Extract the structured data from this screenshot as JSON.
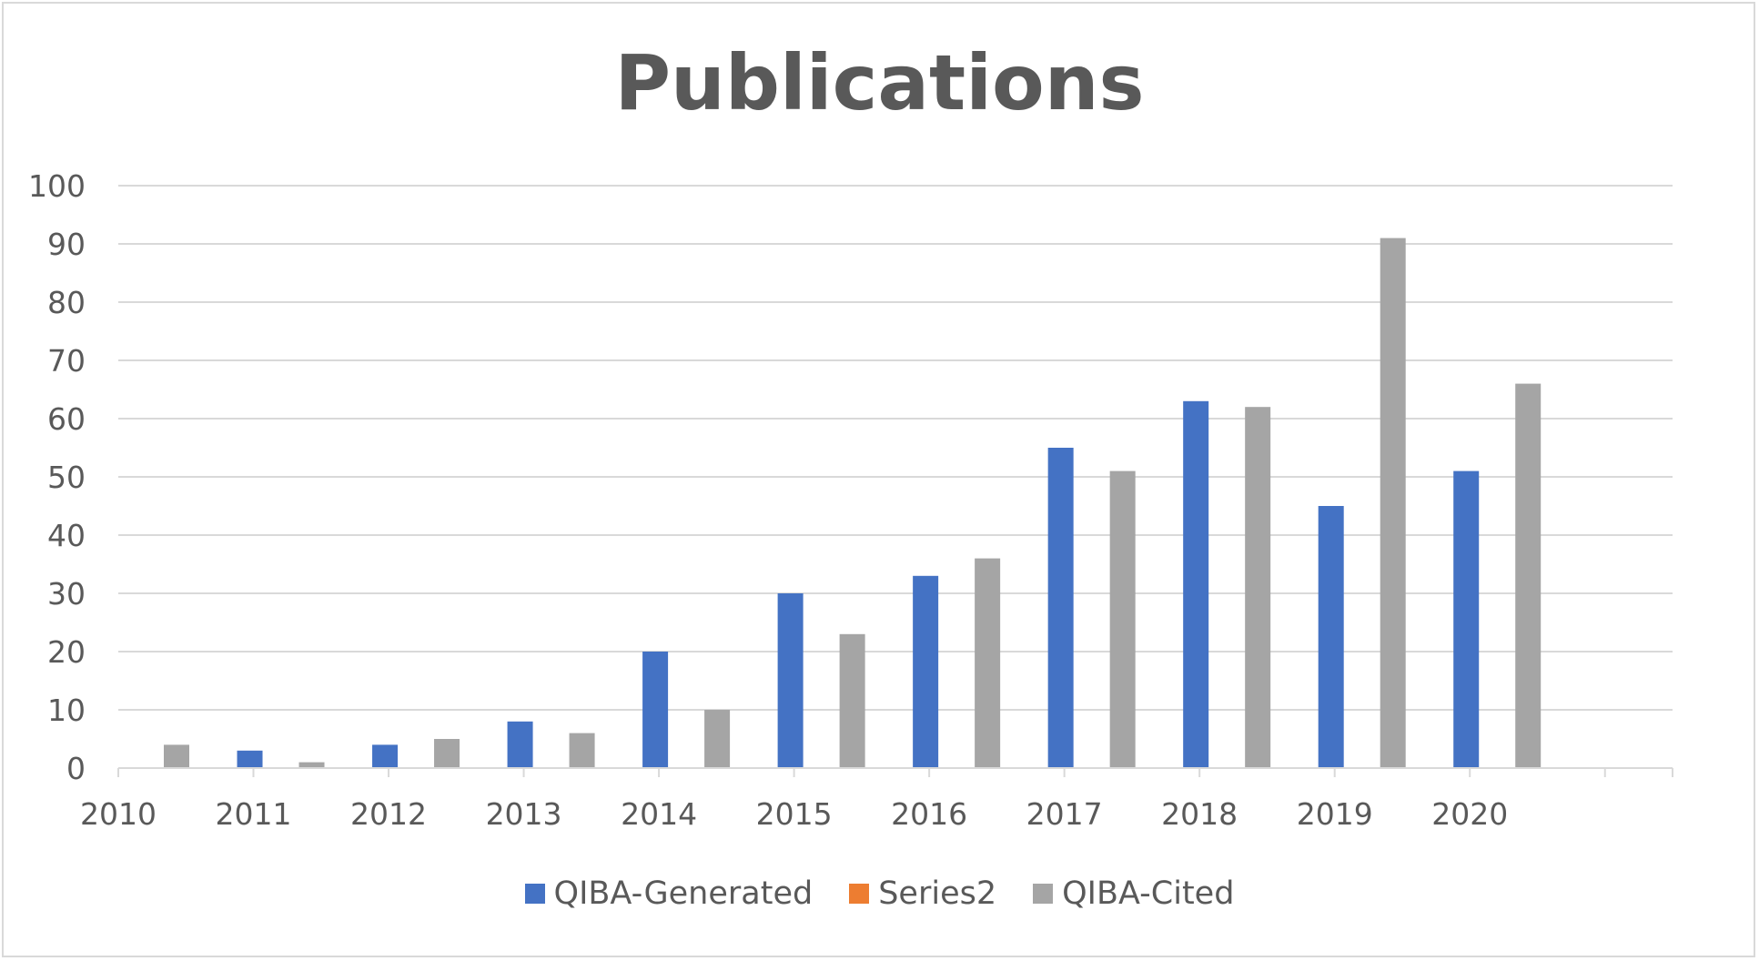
{
  "chart_data": {
    "type": "bar",
    "title": "Publications",
    "xlabel": "",
    "ylabel": "",
    "categories": [
      "2010",
      "2011",
      "2012",
      "2013",
      "2014",
      "2015",
      "2016",
      "2017",
      "2018",
      "2019",
      "2020"
    ],
    "series": [
      {
        "name": "QIBA-Generated",
        "color": "#4472c4",
        "values": [
          0,
          3,
          4,
          8,
          20,
          30,
          33,
          55,
          63,
          45,
          51
        ]
      },
      {
        "name": "Series2",
        "color": "#ed7d31",
        "values": [
          0,
          0,
          0,
          0,
          0,
          0,
          0,
          0,
          0,
          0,
          0
        ]
      },
      {
        "name": "QIBA-Cited",
        "color": "#a5a5a5",
        "values": [
          4,
          1,
          5,
          6,
          10,
          23,
          36,
          51,
          62,
          91,
          66
        ]
      }
    ],
    "ylim": [
      0,
      100
    ],
    "yticks": [
      0,
      10,
      20,
      30,
      40,
      50,
      60,
      70,
      80,
      90,
      100
    ],
    "grid": true,
    "legend_position": "bottom"
  }
}
